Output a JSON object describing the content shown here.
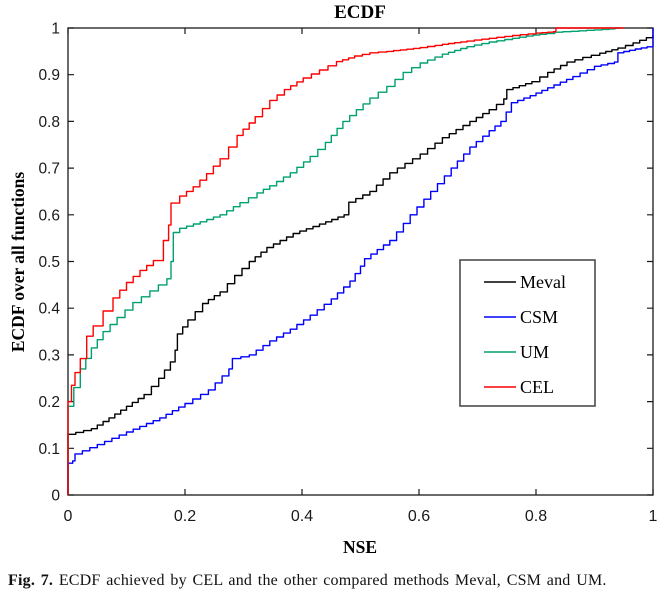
{
  "figure": {
    "caption_label": "Fig. 7.",
    "caption_text": "ECDF achieved by CEL and the other compared methods Meval, CSM and UM."
  },
  "chart_data": {
    "type": "line",
    "style": "ecdf-stairs",
    "title": "ECDF",
    "xlabel": "NSE",
    "ylabel": "ECDF over all functions",
    "xlim": [
      0,
      1
    ],
    "ylim": [
      0,
      1
    ],
    "grid": false,
    "axis_color": "#1a1a1a",
    "x_ticks": [
      0,
      0.2,
      0.4,
      0.6,
      0.8,
      1
    ],
    "x_tick_labels": [
      "0",
      "0.2",
      "0.4",
      "0.6",
      "0.8",
      "1"
    ],
    "y_ticks": [
      0,
      0.1,
      0.2,
      0.3,
      0.4,
      0.5,
      0.6,
      0.7,
      0.8,
      0.9,
      1
    ],
    "y_tick_labels": [
      "0",
      "0.1",
      "0.2",
      "0.3",
      "0.4",
      "0.5",
      "0.6",
      "0.7",
      "0.8",
      "0.9",
      "1"
    ],
    "legend": {
      "position": "middle-right",
      "border_color": "#4d4d4d"
    },
    "series": [
      {
        "name": "Meval",
        "color": "#000000",
        "points": [
          [
            0,
            0
          ],
          [
            0,
            0.13
          ],
          [
            0.04,
            0.142
          ],
          [
            0.07,
            0.165
          ],
          [
            0.1,
            0.19
          ],
          [
            0.13,
            0.215
          ],
          [
            0.155,
            0.25
          ],
          [
            0.175,
            0.285
          ],
          [
            0.183,
            0.31
          ],
          [
            0.187,
            0.345
          ],
          [
            0.205,
            0.375
          ],
          [
            0.23,
            0.41
          ],
          [
            0.26,
            0.435
          ],
          [
            0.285,
            0.47
          ],
          [
            0.31,
            0.5
          ],
          [
            0.34,
            0.53
          ],
          [
            0.385,
            0.56
          ],
          [
            0.43,
            0.58
          ],
          [
            0.472,
            0.6
          ],
          [
            0.48,
            0.627
          ],
          [
            0.516,
            0.65
          ],
          [
            0.55,
            0.69
          ],
          [
            0.602,
            0.73
          ],
          [
            0.64,
            0.765
          ],
          [
            0.687,
            0.8
          ],
          [
            0.72,
            0.825
          ],
          [
            0.745,
            0.848
          ],
          [
            0.75,
            0.868
          ],
          [
            0.793,
            0.885
          ],
          [
            0.82,
            0.905
          ],
          [
            0.853,
            0.927
          ],
          [
            0.88,
            0.937
          ],
          [
            0.909,
            0.946
          ],
          [
            0.94,
            0.957
          ],
          [
            0.966,
            0.968
          ],
          [
            1,
            0.985
          ]
        ]
      },
      {
        "name": "CSM",
        "color": "#0000ff",
        "points": [
          [
            0,
            0
          ],
          [
            0,
            0.068
          ],
          [
            0.008,
            0.073
          ],
          [
            0.012,
            0.088
          ],
          [
            0.05,
            0.108
          ],
          [
            0.1,
            0.135
          ],
          [
            0.157,
            0.165
          ],
          [
            0.2,
            0.196
          ],
          [
            0.24,
            0.225
          ],
          [
            0.275,
            0.27
          ],
          [
            0.281,
            0.292
          ],
          [
            0.31,
            0.3
          ],
          [
            0.345,
            0.33
          ],
          [
            0.38,
            0.355
          ],
          [
            0.414,
            0.385
          ],
          [
            0.45,
            0.42
          ],
          [
            0.482,
            0.458
          ],
          [
            0.5,
            0.49
          ],
          [
            0.507,
            0.506
          ],
          [
            0.55,
            0.545
          ],
          [
            0.585,
            0.6
          ],
          [
            0.62,
            0.65
          ],
          [
            0.655,
            0.7
          ],
          [
            0.687,
            0.745
          ],
          [
            0.72,
            0.78
          ],
          [
            0.74,
            0.8
          ],
          [
            0.758,
            0.84
          ],
          [
            0.79,
            0.855
          ],
          [
            0.82,
            0.872
          ],
          [
            0.863,
            0.896
          ],
          [
            0.9,
            0.918
          ],
          [
            0.934,
            0.927
          ],
          [
            0.94,
            0.947
          ],
          [
            0.97,
            0.955
          ],
          [
            1,
            0.962
          ],
          [
            1,
            1
          ]
        ]
      },
      {
        "name": "UM",
        "color": "#00a070",
        "points": [
          [
            0,
            0
          ],
          [
            0,
            0.19
          ],
          [
            0.01,
            0.23
          ],
          [
            0.021,
            0.27
          ],
          [
            0.04,
            0.315
          ],
          [
            0.06,
            0.35
          ],
          [
            0.084,
            0.38
          ],
          [
            0.111,
            0.412
          ],
          [
            0.14,
            0.437
          ],
          [
            0.169,
            0.463
          ],
          [
            0.176,
            0.5
          ],
          [
            0.18,
            0.562
          ],
          [
            0.191,
            0.571
          ],
          [
            0.226,
            0.585
          ],
          [
            0.26,
            0.6
          ],
          [
            0.294,
            0.626
          ],
          [
            0.323,
            0.647
          ],
          [
            0.345,
            0.662
          ],
          [
            0.38,
            0.69
          ],
          [
            0.414,
            0.725
          ],
          [
            0.44,
            0.755
          ],
          [
            0.47,
            0.8
          ],
          [
            0.516,
            0.85
          ],
          [
            0.545,
            0.875
          ],
          [
            0.573,
            0.905
          ],
          [
            0.602,
            0.925
          ],
          [
            0.64,
            0.944
          ],
          [
            0.682,
            0.96
          ],
          [
            0.72,
            0.97
          ],
          [
            0.76,
            0.978
          ],
          [
            0.795,
            0.985
          ],
          [
            0.818,
            0.988
          ],
          [
            0.832,
            0.991
          ],
          [
            0.86,
            0.993
          ],
          [
            0.9,
            0.996
          ],
          [
            0.925,
            0.998
          ],
          [
            0.935,
            1
          ],
          [
            0.945,
            1
          ]
        ]
      },
      {
        "name": "CEL",
        "color": "#ff0000",
        "points": [
          [
            0,
            0
          ],
          [
            0,
            0.2
          ],
          [
            0.006,
            0.235
          ],
          [
            0.012,
            0.262
          ],
          [
            0.021,
            0.292
          ],
          [
            0.032,
            0.34
          ],
          [
            0.043,
            0.362
          ],
          [
            0.06,
            0.394
          ],
          [
            0.077,
            0.422
          ],
          [
            0.1,
            0.455
          ],
          [
            0.123,
            0.481
          ],
          [
            0.146,
            0.502
          ],
          [
            0.163,
            0.545
          ],
          [
            0.172,
            0.578
          ],
          [
            0.176,
            0.625
          ],
          [
            0.191,
            0.64
          ],
          [
            0.214,
            0.66
          ],
          [
            0.237,
            0.688
          ],
          [
            0.26,
            0.72
          ],
          [
            0.289,
            0.77
          ],
          [
            0.32,
            0.81
          ],
          [
            0.345,
            0.845
          ],
          [
            0.37,
            0.868
          ],
          [
            0.402,
            0.893
          ],
          [
            0.43,
            0.91
          ],
          [
            0.459,
            0.928
          ],
          [
            0.49,
            0.94
          ],
          [
            0.516,
            0.947
          ],
          [
            0.545,
            0.95
          ],
          [
            0.568,
            0.953
          ],
          [
            0.602,
            0.958
          ],
          [
            0.64,
            0.965
          ],
          [
            0.682,
            0.972
          ],
          [
            0.72,
            0.978
          ],
          [
            0.76,
            0.984
          ],
          [
            0.8,
            0.989
          ],
          [
            0.83,
            0.992
          ],
          [
            0.834,
            1
          ],
          [
            0.95,
            1
          ]
        ]
      }
    ]
  }
}
